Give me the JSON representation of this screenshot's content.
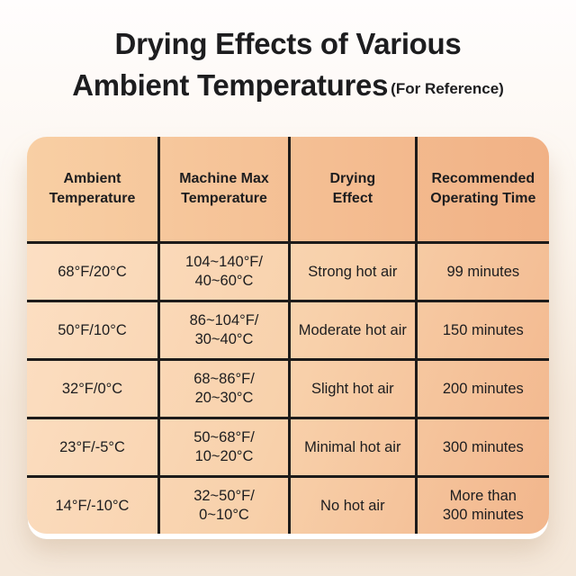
{
  "title": {
    "line1": "Drying Effects of Various",
    "line2": "Ambient Temperatures",
    "suffix": "(For Reference)"
  },
  "table": {
    "headers": [
      [
        "Ambient",
        "Temperature"
      ],
      [
        "Machine Max",
        "Temperature"
      ],
      [
        "Drying",
        "Effect"
      ],
      [
        "Recommended",
        "Operating Time"
      ]
    ],
    "rows": [
      {
        "cells": [
          [
            "68°F/20°C"
          ],
          [
            "104~140°F/",
            "40~60°C"
          ],
          [
            "Strong hot air"
          ],
          [
            "99 minutes"
          ]
        ]
      },
      {
        "cells": [
          [
            "50°F/10°C"
          ],
          [
            "86~104°F/",
            "30~40°C"
          ],
          [
            "Moderate hot air"
          ],
          [
            "150 minutes"
          ]
        ]
      },
      {
        "cells": [
          [
            "32°F/0°C"
          ],
          [
            "68~86°F/",
            "20~30°C"
          ],
          [
            "Slight hot air"
          ],
          [
            "200 minutes"
          ]
        ]
      },
      {
        "cells": [
          [
            "23°F/-5°C"
          ],
          [
            "50~68°F/",
            "10~20°C"
          ],
          [
            "Minimal hot air"
          ],
          [
            "300 minutes"
          ]
        ]
      },
      {
        "cells": [
          [
            "14°F/-10°C"
          ],
          [
            "32~50°F/",
            "0~10°C"
          ],
          [
            "No hot air"
          ],
          [
            "More than",
            "300 minutes"
          ]
        ]
      }
    ]
  },
  "colors": {
    "text": "#1d1d1f",
    "grid_line": "#1d1b1a",
    "header_start": "#f8cfa4",
    "header_end": "#f1b185",
    "body_start": "#fcdfc3",
    "body_end": "#f2b68c",
    "card_rim": "#ffffff",
    "background_top": "#fffdfd",
    "background_bottom": "#f5e8da"
  },
  "chart_data": {
    "type": "table",
    "title": "Drying Effects of Various Ambient Temperatures (For Reference)",
    "columns": [
      "Ambient Temperature",
      "Machine Max Temperature",
      "Drying Effect",
      "Recommended Operating Time"
    ],
    "rows": [
      [
        "68°F/20°C",
        "104~140°F/40~60°C",
        "Strong hot air",
        "99 minutes"
      ],
      [
        "50°F/10°C",
        "86~104°F/30~40°C",
        "Moderate hot air",
        "150 minutes"
      ],
      [
        "32°F/0°C",
        "68~86°F/20~30°C",
        "Slight hot air",
        "200 minutes"
      ],
      [
        "23°F/-5°C",
        "50~68°F/10~20°C",
        "Minimal hot air",
        "300 minutes"
      ],
      [
        "14°F/-10°C",
        "32~50°F/0~10°C",
        "No hot air",
        "More than 300 minutes"
      ]
    ]
  }
}
